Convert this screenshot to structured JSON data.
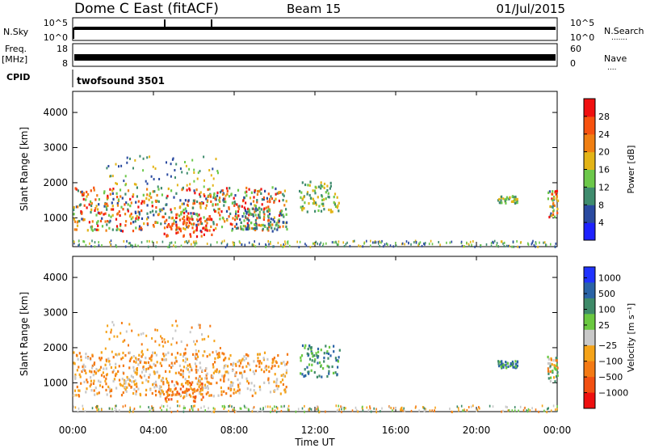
{
  "header": {
    "station": "Dome C East (fitACF)",
    "beam": "Beam 15",
    "date": "01/Jul/2015"
  },
  "strips": {
    "nsky": {
      "label": "N.Sky",
      "tick_top": "10^5",
      "tick_bottom": "10^0",
      "right_label": "N.Search",
      "right_tick_top": "10^5",
      "right_tick_bottom": "10^0",
      "right_dots": "......."
    },
    "freq": {
      "label_line1": "Freq.",
      "label_line2": "[MHz]",
      "tick_top": "18",
      "tick_bottom": "8",
      "right_label": "Nave",
      "right_tick_top": "60",
      "right_tick_bottom": "0",
      "right_dots": "...."
    },
    "cpid": {
      "label": "CPID",
      "value": "twofsound 3501"
    }
  },
  "chart_data": [
    {
      "type": "heatmap",
      "name": "power-panel",
      "ylabel": "Slant Range [km]",
      "xlabel": "",
      "x_ticks": [
        "00:00",
        "04:00",
        "08:00",
        "12:00",
        "16:00",
        "20:00",
        "00:00"
      ],
      "x_range_hours": [
        0,
        24
      ],
      "y_ticks": [
        1000,
        2000,
        3000,
        4000
      ],
      "ylim": [
        180,
        4600
      ],
      "colorbar": {
        "label": "Power [dB]",
        "ticks": [
          "4",
          "8",
          "12",
          "16",
          "20",
          "24",
          "28"
        ],
        "colors": [
          "#1e22ff",
          "#2a4aa0",
          "#3f8c6e",
          "#6cc84a",
          "#e3b417",
          "#f07f12",
          "#f7520f",
          "#f01010"
        ]
      },
      "regions": [
        {
          "t0": 0.0,
          "t1": 10.6,
          "r0": 650,
          "r1": 1900,
          "level": "mixed-strong"
        },
        {
          "t0": 4.4,
          "t1": 6.9,
          "r0": 500,
          "r1": 1100,
          "level": "strong"
        },
        {
          "t0": 8.0,
          "t1": 10.6,
          "r0": 700,
          "r1": 1300,
          "level": "weak"
        },
        {
          "t0": 11.2,
          "t1": 13.2,
          "r0": 1200,
          "r1": 2100,
          "level": "medium"
        },
        {
          "t0": 21.0,
          "t1": 22.0,
          "r0": 1450,
          "r1": 1650,
          "level": "medium"
        },
        {
          "t0": 23.5,
          "t1": 24.0,
          "r0": 1050,
          "r1": 1800,
          "level": "mixed-strong"
        }
      ]
    },
    {
      "type": "heatmap",
      "name": "velocity-panel",
      "ylabel": "Slant Range [km]",
      "xlabel": "Time UT",
      "x_ticks": [
        "00:00",
        "04:00",
        "08:00",
        "12:00",
        "16:00",
        "20:00",
        "00:00"
      ],
      "x_range_hours": [
        0,
        24
      ],
      "y_ticks": [
        1000,
        2000,
        3000,
        4000
      ],
      "ylim": [
        180,
        4600
      ],
      "colorbar": {
        "label": "Velocity [m s⁻¹]",
        "ticks": [
          "1000",
          "500",
          "100",
          "25",
          "−25",
          "−100",
          "−500",
          "−1000"
        ],
        "colors": [
          "#2033ff",
          "#2a63a6",
          "#3e8a68",
          "#6ac840",
          "#c8c8c8",
          "#f5a319",
          "#f47a14",
          "#f25012",
          "#ee1010"
        ]
      },
      "regions": [
        {
          "t0": 0.0,
          "t1": 10.6,
          "r0": 650,
          "r1": 1900,
          "level": "negative"
        },
        {
          "t0": 4.4,
          "t1": 6.9,
          "r0": 500,
          "r1": 1100,
          "level": "negative-strong"
        },
        {
          "t0": 11.2,
          "t1": 13.2,
          "r0": 1200,
          "r1": 2100,
          "level": "positive"
        },
        {
          "t0": 21.0,
          "t1": 22.0,
          "r0": 1450,
          "r1": 1650,
          "level": "positive"
        },
        {
          "t0": 23.5,
          "t1": 24.0,
          "r0": 1050,
          "r1": 1800,
          "level": "mixed"
        }
      ]
    }
  ]
}
